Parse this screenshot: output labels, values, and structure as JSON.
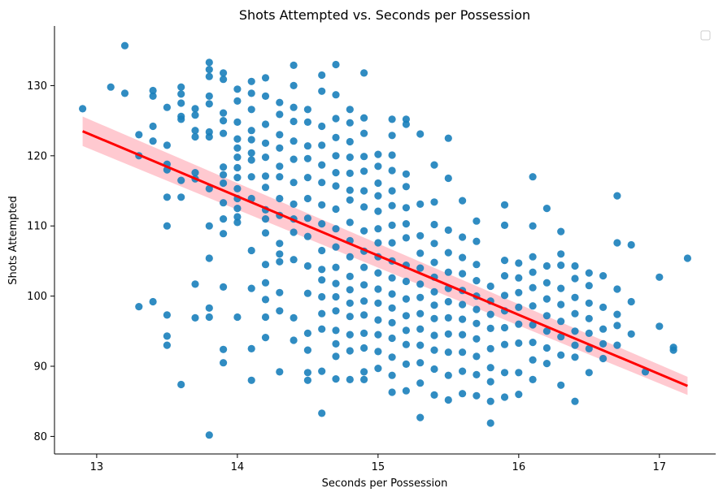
{
  "chart_data": {
    "type": "scatter",
    "title": "Shots Attempted vs. Seconds per Possession",
    "xlabel": "Seconds per Possession",
    "ylabel": "Shots Attempted",
    "xlim": [
      12.7,
      17.4
    ],
    "ylim": [
      77.5,
      138.5
    ],
    "xticks": [
      13,
      14,
      15,
      16,
      17
    ],
    "yticks": [
      80,
      90,
      100,
      110,
      120,
      130
    ],
    "grid": false,
    "legend": "top-right, empty",
    "point_color": "#1a80bb",
    "regression": {
      "color": "#ff0000",
      "band_color": "#ffc0c8",
      "x": [
        12.9,
        17.2
      ],
      "y": [
        123.5,
        87.2
      ],
      "ci_lower": [
        121.4,
        85.9
      ],
      "ci_upper": [
        125.6,
        88.5
      ]
    },
    "points": [
      [
        12.9,
        126.7
      ],
      [
        13.1,
        129.8
      ],
      [
        13.2,
        135.7
      ],
      [
        13.2,
        128.9
      ],
      [
        13.3,
        123.0
      ],
      [
        13.3,
        120.0
      ],
      [
        13.3,
        98.5
      ],
      [
        13.4,
        129.3
      ],
      [
        13.4,
        128.5
      ],
      [
        13.4,
        124.2
      ],
      [
        13.4,
        122.1
      ],
      [
        13.4,
        99.2
      ],
      [
        13.5,
        126.9
      ],
      [
        13.5,
        121.5
      ],
      [
        13.5,
        118.8
      ],
      [
        13.5,
        118.0
      ],
      [
        13.5,
        114.1
      ],
      [
        13.5,
        110.0
      ],
      [
        13.5,
        97.3
      ],
      [
        13.5,
        94.3
      ],
      [
        13.5,
        93.0
      ],
      [
        13.6,
        129.8
      ],
      [
        13.6,
        128.8
      ],
      [
        13.6,
        127.5
      ],
      [
        13.6,
        125.6
      ],
      [
        13.6,
        125.2
      ],
      [
        13.6,
        116.5
      ],
      [
        13.6,
        114.1
      ],
      [
        13.6,
        87.4
      ],
      [
        13.7,
        126.7
      ],
      [
        13.7,
        125.8
      ],
      [
        13.7,
        123.6
      ],
      [
        13.7,
        122.7
      ],
      [
        13.7,
        117.6
      ],
      [
        13.7,
        116.7
      ],
      [
        13.7,
        101.7
      ],
      [
        13.7,
        96.9
      ],
      [
        13.8,
        133.3
      ],
      [
        13.8,
        132.3
      ],
      [
        13.8,
        131.3
      ],
      [
        13.8,
        128.5
      ],
      [
        13.8,
        127.4
      ],
      [
        13.8,
        123.4
      ],
      [
        13.8,
        122.7
      ],
      [
        13.8,
        115.3
      ],
      [
        13.8,
        110.0
      ],
      [
        13.8,
        105.4
      ],
      [
        13.8,
        98.3
      ],
      [
        13.8,
        97.0
      ],
      [
        13.8,
        80.2
      ],
      [
        13.9,
        131.8
      ],
      [
        13.9,
        130.9
      ],
      [
        13.9,
        126.1
      ],
      [
        13.9,
        125.0
      ],
      [
        13.9,
        123.2
      ],
      [
        13.9,
        118.4
      ],
      [
        13.9,
        117.3
      ],
      [
        13.9,
        116.1
      ],
      [
        13.9,
        113.3
      ],
      [
        13.9,
        111.0
      ],
      [
        13.9,
        108.9
      ],
      [
        13.9,
        101.3
      ],
      [
        13.9,
        92.4
      ],
      [
        13.9,
        90.5
      ],
      [
        14.0,
        129.5
      ],
      [
        14.0,
        127.8
      ],
      [
        14.0,
        124.8
      ],
      [
        14.0,
        122.4
      ],
      [
        14.0,
        121.1
      ],
      [
        14.0,
        119.8
      ],
      [
        14.0,
        118.3
      ],
      [
        14.0,
        116.9
      ],
      [
        14.0,
        115.3
      ],
      [
        14.0,
        113.9
      ],
      [
        14.0,
        112.5
      ],
      [
        14.0,
        111.3
      ],
      [
        14.0,
        110.5
      ],
      [
        14.0,
        97.0
      ],
      [
        14.1,
        130.6
      ],
      [
        14.1,
        128.9
      ],
      [
        14.1,
        126.6
      ],
      [
        14.1,
        123.6
      ],
      [
        14.1,
        122.3
      ],
      [
        14.1,
        120.4
      ],
      [
        14.1,
        119.4
      ],
      [
        14.1,
        117.0
      ],
      [
        14.1,
        113.9
      ],
      [
        14.1,
        106.5
      ],
      [
        14.1,
        101.1
      ],
      [
        14.1,
        92.5
      ],
      [
        14.1,
        88.0
      ],
      [
        14.2,
        131.1
      ],
      [
        14.2,
        128.5
      ],
      [
        14.2,
        124.5
      ],
      [
        14.2,
        121.8
      ],
      [
        14.2,
        119.8
      ],
      [
        14.2,
        117.1
      ],
      [
        14.2,
        115.5
      ],
      [
        14.2,
        112.3
      ],
      [
        14.2,
        111.0
      ],
      [
        14.2,
        109.0
      ],
      [
        14.2,
        104.5
      ],
      [
        14.2,
        101.9
      ],
      [
        14.2,
        99.5
      ],
      [
        14.2,
        97.0
      ],
      [
        14.2,
        94.1
      ],
      [
        14.3,
        127.6
      ],
      [
        14.3,
        125.9
      ],
      [
        14.3,
        123.0
      ],
      [
        14.3,
        121.1
      ],
      [
        14.3,
        118.5
      ],
      [
        14.3,
        117.0
      ],
      [
        14.3,
        113.9
      ],
      [
        14.3,
        111.5
      ],
      [
        14.3,
        107.5
      ],
      [
        14.3,
        106.0
      ],
      [
        14.3,
        104.9
      ],
      [
        14.3,
        100.5
      ],
      [
        14.3,
        97.9
      ],
      [
        14.3,
        89.2
      ],
      [
        14.4,
        132.9
      ],
      [
        14.4,
        130.0
      ],
      [
        14.4,
        126.9
      ],
      [
        14.4,
        124.9
      ],
      [
        14.4,
        122.1
      ],
      [
        14.4,
        119.5
      ],
      [
        14.4,
        116.2
      ],
      [
        14.4,
        113.1
      ],
      [
        14.4,
        111.0
      ],
      [
        14.4,
        109.1
      ],
      [
        14.4,
        105.2
      ],
      [
        14.4,
        96.9
      ],
      [
        14.4,
        93.7
      ],
      [
        14.5,
        126.6
      ],
      [
        14.5,
        124.8
      ],
      [
        14.5,
        121.4
      ],
      [
        14.5,
        119.6
      ],
      [
        14.5,
        116.9
      ],
      [
        14.5,
        113.9
      ],
      [
        14.5,
        111.1
      ],
      [
        14.5,
        108.5
      ],
      [
        14.5,
        104.3
      ],
      [
        14.5,
        100.4
      ],
      [
        14.5,
        94.7
      ],
      [
        14.5,
        92.3
      ],
      [
        14.5,
        89.1
      ],
      [
        14.5,
        88.0
      ],
      [
        14.6,
        131.5
      ],
      [
        14.6,
        129.2
      ],
      [
        14.6,
        124.2
      ],
      [
        14.6,
        121.5
      ],
      [
        14.6,
        118.7
      ],
      [
        14.6,
        116.2
      ],
      [
        14.6,
        113.0
      ],
      [
        14.6,
        110.3
      ],
      [
        14.6,
        106.5
      ],
      [
        14.6,
        103.8
      ],
      [
        14.6,
        102.3
      ],
      [
        14.6,
        99.9
      ],
      [
        14.6,
        97.5
      ],
      [
        14.6,
        95.3
      ],
      [
        14.6,
        89.3
      ],
      [
        14.6,
        83.3
      ],
      [
        14.7,
        133.0
      ],
      [
        14.7,
        128.7
      ],
      [
        14.7,
        125.3
      ],
      [
        14.7,
        122.6
      ],
      [
        14.7,
        120.0
      ],
      [
        14.7,
        117.6
      ],
      [
        14.7,
        115.7
      ],
      [
        14.7,
        112.4
      ],
      [
        14.7,
        109.6
      ],
      [
        14.7,
        107.0
      ],
      [
        14.7,
        104.1
      ],
      [
        14.7,
        101.8
      ],
      [
        14.7,
        99.9
      ],
      [
        14.7,
        97.9
      ],
      [
        14.7,
        95.1
      ],
      [
        14.7,
        93.2
      ],
      [
        14.7,
        91.4
      ],
      [
        14.7,
        88.2
      ],
      [
        14.8,
        126.6
      ],
      [
        14.8,
        124.7
      ],
      [
        14.8,
        122.0
      ],
      [
        14.8,
        119.8
      ],
      [
        14.8,
        117.5
      ],
      [
        14.8,
        115.1
      ],
      [
        14.8,
        113.7
      ],
      [
        14.8,
        110.5
      ],
      [
        14.8,
        107.9
      ],
      [
        14.8,
        105.6
      ],
      [
        14.8,
        102.8
      ],
      [
        14.8,
        100.9
      ],
      [
        14.8,
        99.0
      ],
      [
        14.8,
        97.1
      ],
      [
        14.8,
        94.5
      ],
      [
        14.8,
        92.2
      ],
      [
        14.8,
        88.1
      ],
      [
        14.9,
        131.8
      ],
      [
        14.9,
        125.4
      ],
      [
        14.9,
        123.2
      ],
      [
        14.9,
        119.9
      ],
      [
        14.9,
        117.8
      ],
      [
        14.9,
        115.0
      ],
      [
        14.9,
        112.7
      ],
      [
        14.9,
        109.3
      ],
      [
        14.9,
        106.4
      ],
      [
        14.9,
        104.1
      ],
      [
        14.9,
        101.6
      ],
      [
        14.9,
        99.3
      ],
      [
        14.9,
        97.3
      ],
      [
        14.9,
        94.7
      ],
      [
        14.9,
        92.6
      ],
      [
        14.9,
        89.2
      ],
      [
        14.9,
        88.1
      ],
      [
        15.0,
        120.2
      ],
      [
        15.0,
        118.5
      ],
      [
        15.0,
        116.1
      ],
      [
        15.0,
        114.3
      ],
      [
        15.0,
        112.1
      ],
      [
        15.0,
        109.6
      ],
      [
        15.0,
        107.6
      ],
      [
        15.0,
        105.6
      ],
      [
        15.0,
        103.3
      ],
      [
        15.0,
        101.0
      ],
      [
        15.0,
        99.0
      ],
      [
        15.0,
        96.6
      ],
      [
        15.0,
        94.5
      ],
      [
        15.0,
        92.1
      ],
      [
        15.0,
        89.7
      ],
      [
        15.1,
        125.2
      ],
      [
        15.1,
        122.9
      ],
      [
        15.1,
        120.1
      ],
      [
        15.1,
        117.9
      ],
      [
        15.1,
        115.0
      ],
      [
        15.1,
        112.9
      ],
      [
        15.1,
        110.1
      ],
      [
        15.1,
        107.6
      ],
      [
        15.1,
        105.0
      ],
      [
        15.1,
        102.6
      ],
      [
        15.1,
        100.3
      ],
      [
        15.1,
        98.3
      ],
      [
        15.1,
        96.2
      ],
      [
        15.1,
        94.0
      ],
      [
        15.1,
        91.3
      ],
      [
        15.1,
        88.7
      ],
      [
        15.1,
        86.3
      ],
      [
        15.2,
        125.2
      ],
      [
        15.2,
        124.5
      ],
      [
        15.2,
        117.4
      ],
      [
        15.2,
        115.6
      ],
      [
        15.2,
        112.6
      ],
      [
        15.2,
        110.3
      ],
      [
        15.2,
        108.3
      ],
      [
        15.2,
        104.4
      ],
      [
        15.2,
        102.1
      ],
      [
        15.2,
        99.6
      ],
      [
        15.2,
        97.2
      ],
      [
        15.2,
        95.1
      ],
      [
        15.2,
        93.1
      ],
      [
        15.2,
        90.3
      ],
      [
        15.2,
        86.5
      ],
      [
        15.3,
        123.1
      ],
      [
        15.3,
        113.1
      ],
      [
        15.3,
        108.6
      ],
      [
        15.3,
        106.1
      ],
      [
        15.3,
        104.0
      ],
      [
        15.3,
        101.7
      ],
      [
        15.3,
        99.8
      ],
      [
        15.3,
        97.5
      ],
      [
        15.3,
        95.3
      ],
      [
        15.3,
        93.0
      ],
      [
        15.3,
        90.5
      ],
      [
        15.3,
        87.6
      ],
      [
        15.3,
        82.7
      ],
      [
        15.4,
        118.7
      ],
      [
        15.4,
        113.4
      ],
      [
        15.4,
        110.2
      ],
      [
        15.4,
        107.5
      ],
      [
        15.4,
        104.8
      ],
      [
        15.4,
        102.7
      ],
      [
        15.4,
        100.6
      ],
      [
        15.4,
        98.7
      ],
      [
        15.4,
        96.8
      ],
      [
        15.4,
        94.4
      ],
      [
        15.4,
        92.3
      ],
      [
        15.4,
        89.6
      ],
      [
        15.4,
        85.9
      ],
      [
        15.5,
        122.5
      ],
      [
        15.5,
        116.8
      ],
      [
        15.5,
        109.4
      ],
      [
        15.5,
        106.2
      ],
      [
        15.5,
        103.4
      ],
      [
        15.5,
        101.1
      ],
      [
        15.5,
        99.2
      ],
      [
        15.5,
        96.9
      ],
      [
        15.5,
        94.6
      ],
      [
        15.5,
        92.0
      ],
      [
        15.5,
        88.7
      ],
      [
        15.5,
        85.2
      ],
      [
        15.6,
        113.6
      ],
      [
        15.6,
        108.4
      ],
      [
        15.6,
        105.5
      ],
      [
        15.6,
        103.2
      ],
      [
        15.6,
        100.8
      ],
      [
        15.6,
        98.8
      ],
      [
        15.6,
        96.7
      ],
      [
        15.6,
        94.5
      ],
      [
        15.6,
        92.0
      ],
      [
        15.6,
        89.3
      ],
      [
        15.6,
        86.1
      ],
      [
        15.7,
        110.7
      ],
      [
        15.7,
        107.8
      ],
      [
        15.7,
        104.5
      ],
      [
        15.7,
        102.2
      ],
      [
        15.7,
        100.0
      ],
      [
        15.7,
        98.1
      ],
      [
        15.7,
        96.1
      ],
      [
        15.7,
        93.9
      ],
      [
        15.7,
        91.4
      ],
      [
        15.7,
        88.8
      ],
      [
        15.7,
        85.8
      ],
      [
        15.8,
        101.4
      ],
      [
        15.8,
        99.3
      ],
      [
        15.8,
        97.4
      ],
      [
        15.8,
        95.4
      ],
      [
        15.8,
        92.5
      ],
      [
        15.8,
        89.8
      ],
      [
        15.8,
        87.8
      ],
      [
        15.8,
        85.0
      ],
      [
        15.8,
        81.9
      ],
      [
        15.9,
        113.0
      ],
      [
        15.9,
        110.1
      ],
      [
        15.9,
        105.1
      ],
      [
        15.9,
        102.9
      ],
      [
        15.9,
        100.1
      ],
      [
        15.9,
        97.9
      ],
      [
        15.9,
        95.5
      ],
      [
        15.9,
        93.1
      ],
      [
        15.9,
        89.1
      ],
      [
        15.9,
        85.6
      ],
      [
        16.0,
        104.7
      ],
      [
        16.0,
        102.6
      ],
      [
        16.0,
        100.5
      ],
      [
        16.0,
        98.4
      ],
      [
        16.0,
        96.0
      ],
      [
        16.0,
        93.3
      ],
      [
        16.0,
        89.1
      ],
      [
        16.0,
        86.0
      ],
      [
        16.1,
        117.0
      ],
      [
        16.1,
        110.0
      ],
      [
        16.1,
        105.6
      ],
      [
        16.1,
        103.4
      ],
      [
        16.1,
        101.2
      ],
      [
        16.1,
        98.6
      ],
      [
        16.1,
        95.9
      ],
      [
        16.1,
        93.4
      ],
      [
        16.1,
        90.9
      ],
      [
        16.1,
        88.1
      ],
      [
        16.2,
        112.5
      ],
      [
        16.2,
        104.3
      ],
      [
        16.2,
        101.9
      ],
      [
        16.2,
        99.6
      ],
      [
        16.2,
        97.2
      ],
      [
        16.2,
        95.0
      ],
      [
        16.2,
        92.6
      ],
      [
        16.2,
        90.4
      ],
      [
        16.3,
        109.2
      ],
      [
        16.3,
        106.0
      ],
      [
        16.3,
        104.4
      ],
      [
        16.3,
        101.1
      ],
      [
        16.3,
        98.8
      ],
      [
        16.3,
        96.4
      ],
      [
        16.3,
        94.2
      ],
      [
        16.3,
        91.6
      ],
      [
        16.3,
        87.3
      ],
      [
        16.4,
        104.3
      ],
      [
        16.4,
        102.5
      ],
      [
        16.4,
        99.8
      ],
      [
        16.4,
        97.5
      ],
      [
        16.4,
        95.0
      ],
      [
        16.4,
        93.0
      ],
      [
        16.4,
        91.3
      ],
      [
        16.4,
        85.0
      ],
      [
        16.5,
        103.3
      ],
      [
        16.5,
        101.5
      ],
      [
        16.5,
        99.0
      ],
      [
        16.5,
        96.8
      ],
      [
        16.5,
        94.7
      ],
      [
        16.5,
        92.5
      ],
      [
        16.5,
        89.1
      ],
      [
        16.6,
        102.9
      ],
      [
        16.6,
        98.4
      ],
      [
        16.6,
        95.3
      ],
      [
        16.6,
        93.2
      ],
      [
        16.6,
        91.1
      ],
      [
        16.7,
        114.3
      ],
      [
        16.7,
        107.6
      ],
      [
        16.7,
        101.0
      ],
      [
        16.7,
        97.4
      ],
      [
        16.7,
        95.8
      ],
      [
        16.7,
        93.0
      ],
      [
        16.8,
        107.3
      ],
      [
        16.8,
        99.2
      ],
      [
        16.8,
        94.6
      ],
      [
        16.9,
        89.2
      ],
      [
        17.0,
        102.7
      ],
      [
        17.0,
        95.7
      ],
      [
        17.1,
        92.7
      ],
      [
        17.1,
        92.3
      ],
      [
        17.2,
        105.4
      ]
    ]
  }
}
